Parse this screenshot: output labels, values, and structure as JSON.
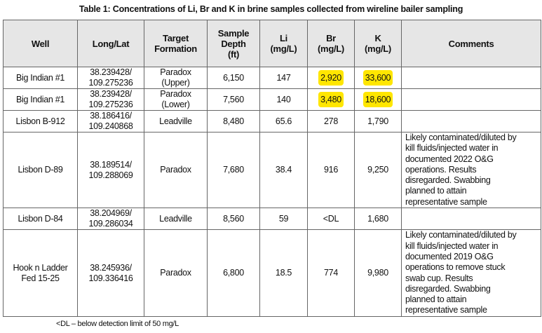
{
  "title": "Table 1: Concentrations of Li, Br and K in brine samples collected from wireline bailer sampling",
  "columns": [
    [
      "Well"
    ],
    [
      "Long/Lat"
    ],
    [
      "Target",
      "Formation"
    ],
    [
      "Sample",
      "Depth",
      "(ft)"
    ],
    [
      "Li",
      "(mg/L)"
    ],
    [
      "Br",
      "(mg/L)"
    ],
    [
      "K",
      "(mg/L)"
    ],
    [
      "Comments"
    ]
  ],
  "rows": [
    {
      "well": [
        "Big Indian #1"
      ],
      "coords": [
        "38.239428/",
        "109.275236"
      ],
      "formation": [
        "Paradox",
        "(Upper)"
      ],
      "depth": "6,150",
      "li": "147",
      "br": "2,920",
      "k": "33,600",
      "comments": [],
      "highlight": true
    },
    {
      "well": [
        "Big Indian #1"
      ],
      "coords": [
        "38.239428/",
        "109.275236"
      ],
      "formation": [
        "Paradox",
        "(Lower)"
      ],
      "depth": "7,560",
      "li": "140",
      "br": "3,480",
      "k": "18,600",
      "comments": [],
      "highlight": true
    },
    {
      "well": [
        "Lisbon B-912"
      ],
      "coords": [
        "38.186416/",
        "109.240868"
      ],
      "formation": [
        "Leadville"
      ],
      "depth": "8,480",
      "li": "65.6",
      "br": "278",
      "k": "1,790",
      "comments": []
    },
    {
      "well": [
        "Lisbon D-89"
      ],
      "coords": [
        "38.189514/",
        "109.288069"
      ],
      "formation": [
        "Paradox"
      ],
      "depth": "7,680",
      "li": "38.4",
      "br": "916",
      "k": "9,250",
      "comments": [
        "Likely contaminated/diluted by",
        "kill fluids/injected water in",
        "documented 2022 O&G",
        "operations. Results",
        "disregarded. Swabbing",
        "planned to attain",
        "representative sample"
      ]
    },
    {
      "well": [
        "Lisbon D-84"
      ],
      "coords": [
        "38.204969/",
        "109.286034"
      ],
      "formation": [
        "Leadville"
      ],
      "depth": "8,560",
      "li": "59",
      "br": "<DL",
      "k": "1,680",
      "comments": []
    },
    {
      "well": [
        "Hook n Ladder",
        "Fed 15-25"
      ],
      "coords": [
        "38.245936/",
        "109.336416"
      ],
      "formation": [
        "Paradox"
      ],
      "depth": "6,800",
      "li": "18.5",
      "br": "774",
      "k": "9,980",
      "comments": [
        "Likely contaminated/diluted by",
        "kill fluids/injected water in",
        "documented 2019 O&G",
        "operations to remove stuck",
        "swab cup. Results",
        "disregarded. Swabbing",
        "planned to attain",
        "representative sample"
      ]
    }
  ],
  "footnote": "<DL – below detection limit of 50 mg/L",
  "colors": {
    "highlight": "#ffe600",
    "header_bg": "#e6e6e6"
  }
}
